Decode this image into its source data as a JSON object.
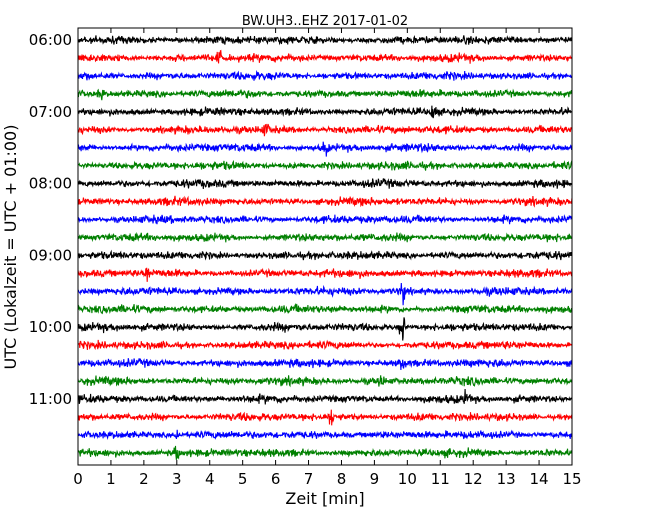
{
  "chart_data": {
    "type": "line",
    "title": "BW.UH3..EHZ 2017-01-02",
    "xlabel": "Zeit  [min]",
    "ylabel": "UTC (Lokalzeit = UTC + 01:00)",
    "xlim": [
      0,
      15
    ],
    "x_ticks": [
      "0",
      "1",
      "2",
      "3",
      "4",
      "5",
      "6",
      "7",
      "8",
      "9",
      "10",
      "11",
      "12",
      "13",
      "14",
      "15"
    ],
    "y_ticks": [
      "06:00",
      "07:00",
      "08:00",
      "09:00",
      "10:00",
      "11:00"
    ],
    "traces_per_hour": 4,
    "trace_count": 24,
    "trace_start": "06:00",
    "trace_interval_min": 15,
    "colors": [
      "#000000",
      "#ff0000",
      "#0000ff",
      "#008000"
    ],
    "events": [
      {
        "trace": 16,
        "x_min": 9.85,
        "amplitude": 3.2
      },
      {
        "trace": 14,
        "x_min": 9.85,
        "amplitude": 2.0
      },
      {
        "trace": 18,
        "x_min": 9.85,
        "amplitude": 1.5
      },
      {
        "trace": 4,
        "x_min": 10.8,
        "amplitude": 1.8
      },
      {
        "trace": 6,
        "x_min": 7.5,
        "amplitude": 1.4
      },
      {
        "trace": 21,
        "x_min": 7.7,
        "amplitude": 1.6
      },
      {
        "trace": 22,
        "x_min": 3.0,
        "amplitude": 1.2
      },
      {
        "trace": 23,
        "x_min": 3.0,
        "amplitude": 1.2
      },
      {
        "trace": 13,
        "x_min": 2.1,
        "amplitude": 1.3
      },
      {
        "trace": 1,
        "x_min": 4.3,
        "amplitude": 1.2
      },
      {
        "trace": 3,
        "x_min": 0.7,
        "amplitude": 1.1
      },
      {
        "trace": 5,
        "x_min": 5.7,
        "amplitude": 1.1
      },
      {
        "trace": 20,
        "x_min": 11.8,
        "amplitude": 1.2
      },
      {
        "trace": 19,
        "x_min": 9.2,
        "amplitude": 1.1
      }
    ]
  }
}
